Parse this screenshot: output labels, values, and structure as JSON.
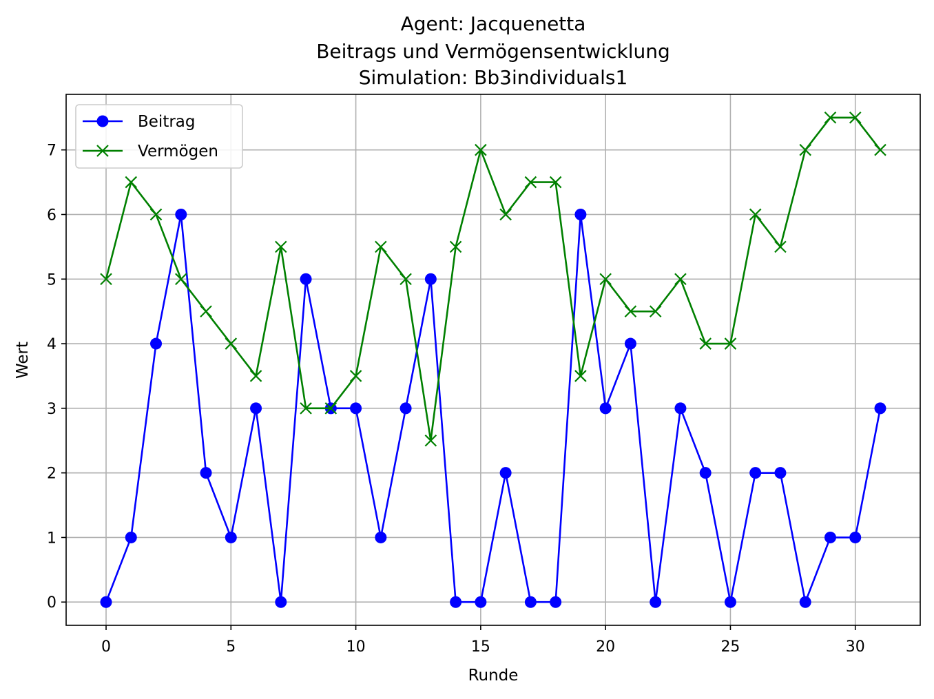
{
  "chart_data": {
    "type": "line",
    "title_lines": [
      "Agent: Jacquenetta",
      "Beitrags und Vermögensentwicklung",
      "Simulation: Bb3individuals1"
    ],
    "xlabel": "Runde",
    "ylabel": "Wert",
    "x": [
      0,
      1,
      2,
      3,
      4,
      5,
      6,
      7,
      8,
      9,
      10,
      11,
      12,
      13,
      14,
      15,
      16,
      17,
      18,
      19,
      20,
      21,
      22,
      23,
      24,
      25,
      26,
      27,
      28,
      29,
      30,
      31
    ],
    "xlim": [
      -1.6,
      32.6
    ],
    "ylim": [
      -0.36,
      7.86
    ],
    "xticks": [
      0,
      5,
      10,
      15,
      20,
      25,
      30
    ],
    "yticks": [
      0,
      1,
      2,
      3,
      4,
      5,
      6,
      7
    ],
    "xtick_labels": [
      "0",
      "5",
      "10",
      "15",
      "20",
      "25",
      "30"
    ],
    "ytick_labels": [
      "0",
      "1",
      "2",
      "3",
      "4",
      "5",
      "6",
      "7"
    ],
    "grid": true,
    "legend_position": "top-left",
    "series": [
      {
        "name": "Beitrag",
        "color": "#0000ff",
        "marker": "circle",
        "values": [
          0,
          1,
          4,
          6,
          2,
          1,
          3,
          0,
          5,
          3,
          3,
          1,
          3,
          5,
          0,
          0,
          2,
          0,
          0,
          6,
          3,
          4,
          0,
          3,
          2,
          0,
          2,
          2,
          0,
          1,
          1,
          3
        ]
      },
      {
        "name": "Vermögen",
        "color": "#008000",
        "marker": "x",
        "values": [
          5,
          6.5,
          6,
          5,
          4.5,
          4,
          3.5,
          5.5,
          3,
          3,
          3.5,
          5.5,
          5,
          2.5,
          5.5,
          7,
          6,
          6.5,
          6.5,
          3.5,
          5,
          4.5,
          4.5,
          5,
          4,
          4,
          6,
          5.5,
          7,
          7.5,
          7.5,
          7
        ]
      }
    ]
  }
}
